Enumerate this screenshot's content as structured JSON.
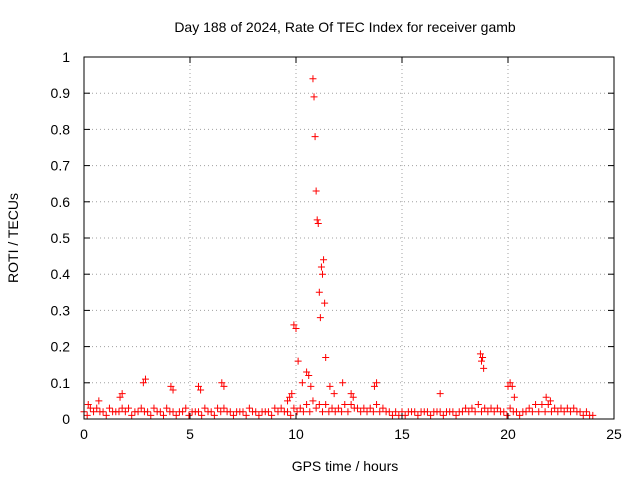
{
  "chart_data": {
    "type": "scatter",
    "title": "Day 188 of 2024, Rate Of TEC Index for receiver gamb",
    "xlabel": "GPS time / hours",
    "ylabel": "ROTI / TECUs",
    "xlim": [
      0,
      25
    ],
    "ylim": [
      0,
      1
    ],
    "x_ticks": [
      "0",
      "5",
      "10",
      "15",
      "20",
      "25"
    ],
    "y_ticks": [
      "0",
      "0.1",
      "0.2",
      "0.3",
      "0.4",
      "0.5",
      "0.6",
      "0.7",
      "0.8",
      "0.9",
      "1"
    ],
    "grid": true,
    "marker": "+",
    "color": "#ff0000",
    "series": [
      {
        "x": [
          0.0,
          0.3,
          0.6,
          0.9,
          1.2,
          1.5,
          1.8,
          2.1,
          2.4,
          2.7,
          3.0,
          3.3,
          3.6,
          3.9,
          4.2,
          4.5,
          4.8,
          5.1,
          5.4,
          5.7,
          6.0,
          6.3,
          6.6,
          6.9,
          7.2,
          7.5,
          7.8,
          8.1,
          8.4,
          8.7,
          9.0,
          9.3,
          9.6,
          9.9,
          10.2,
          10.5,
          10.8,
          11.1,
          11.4,
          11.7,
          12.0,
          12.3,
          12.6,
          12.9,
          13.2,
          13.5,
          13.8,
          14.1,
          14.4,
          14.7,
          15.0,
          15.3,
          15.6,
          15.9,
          16.2,
          16.5,
          16.8,
          17.1,
          17.4,
          17.7,
          18.0,
          18.3,
          18.6,
          18.9,
          19.2,
          19.5,
          19.8,
          20.1,
          20.4,
          20.7,
          21.0,
          21.3,
          21.6,
          21.9,
          22.2,
          22.5,
          22.8,
          23.1,
          23.4,
          23.7,
          24.0,
          0.15,
          0.45,
          0.75,
          1.05,
          1.35,
          1.65,
          1.95,
          2.25,
          2.55,
          2.85,
          3.15,
          3.45,
          3.75,
          4.05,
          4.35,
          4.65,
          4.95,
          5.25,
          5.55,
          5.85,
          6.15,
          6.45,
          6.75,
          7.05,
          7.35,
          7.65,
          7.95,
          8.25,
          8.55,
          8.85,
          9.15,
          9.45,
          9.75,
          10.05,
          10.35,
          10.65,
          10.95,
          11.25,
          11.55,
          11.85,
          12.15,
          12.45,
          12.75,
          13.05,
          13.35,
          13.65,
          13.95,
          14.25,
          14.55,
          14.85,
          15.15,
          15.45,
          15.75,
          16.05,
          16.35,
          16.65,
          16.95,
          17.25,
          17.55,
          17.85,
          18.15,
          18.45,
          18.75,
          19.05,
          19.35,
          19.65,
          19.95,
          20.25,
          20.55,
          20.85,
          21.15,
          21.45,
          21.75,
          22.05,
          22.35,
          22.65,
          22.95,
          23.25,
          23.55,
          23.85,
          0.2,
          0.7,
          1.7,
          1.8,
          2.8,
          2.9,
          4.1,
          4.2,
          5.4,
          5.5,
          6.5,
          6.6,
          9.6,
          9.7,
          9.8,
          9.9,
          10.0,
          10.1,
          10.3,
          10.5,
          10.6,
          10.7,
          10.8,
          10.85,
          10.9,
          10.95,
          11.0,
          11.05,
          11.1,
          11.15,
          11.2,
          11.25,
          11.3,
          11.35,
          11.4,
          11.6,
          11.8,
          12.2,
          12.6,
          12.7,
          13.7,
          13.8,
          16.8,
          18.7,
          18.75,
          18.8,
          18.85,
          20.0,
          20.1,
          20.2,
          20.3,
          21.8,
          22.0
        ],
        "y": [
          0.02,
          0.03,
          0.03,
          0.02,
          0.03,
          0.02,
          0.03,
          0.03,
          0.02,
          0.03,
          0.02,
          0.03,
          0.02,
          0.03,
          0.02,
          0.02,
          0.03,
          0.02,
          0.02,
          0.03,
          0.02,
          0.03,
          0.03,
          0.02,
          0.02,
          0.02,
          0.03,
          0.02,
          0.02,
          0.02,
          0.03,
          0.03,
          0.02,
          0.03,
          0.03,
          0.04,
          0.05,
          0.04,
          0.04,
          0.03,
          0.03,
          0.04,
          0.04,
          0.03,
          0.03,
          0.03,
          0.04,
          0.03,
          0.02,
          0.02,
          0.02,
          0.02,
          0.02,
          0.02,
          0.02,
          0.02,
          0.02,
          0.02,
          0.02,
          0.02,
          0.03,
          0.03,
          0.04,
          0.03,
          0.03,
          0.03,
          0.02,
          0.03,
          0.02,
          0.02,
          0.03,
          0.04,
          0.04,
          0.04,
          0.03,
          0.03,
          0.03,
          0.03,
          0.02,
          0.02,
          0.01,
          0.01,
          0.02,
          0.02,
          0.01,
          0.02,
          0.02,
          0.02,
          0.01,
          0.02,
          0.02,
          0.01,
          0.02,
          0.01,
          0.02,
          0.01,
          0.02,
          0.01,
          0.02,
          0.01,
          0.02,
          0.01,
          0.02,
          0.02,
          0.01,
          0.02,
          0.01,
          0.02,
          0.01,
          0.02,
          0.01,
          0.02,
          0.02,
          0.01,
          0.02,
          0.02,
          0.02,
          0.03,
          0.02,
          0.02,
          0.02,
          0.02,
          0.02,
          0.03,
          0.02,
          0.02,
          0.02,
          0.02,
          0.02,
          0.01,
          0.01,
          0.01,
          0.02,
          0.01,
          0.02,
          0.01,
          0.02,
          0.01,
          0.02,
          0.01,
          0.02,
          0.02,
          0.02,
          0.02,
          0.02,
          0.02,
          0.02,
          0.01,
          0.02,
          0.01,
          0.02,
          0.02,
          0.02,
          0.02,
          0.02,
          0.02,
          0.02,
          0.02,
          0.02,
          0.01,
          0.01,
          0.04,
          0.05,
          0.06,
          0.07,
          0.1,
          0.11,
          0.09,
          0.08,
          0.09,
          0.08,
          0.1,
          0.09,
          0.05,
          0.06,
          0.07,
          0.26,
          0.25,
          0.16,
          0.1,
          0.13,
          0.12,
          0.09,
          0.94,
          0.89,
          0.78,
          0.63,
          0.55,
          0.54,
          0.35,
          0.28,
          0.42,
          0.4,
          0.44,
          0.32,
          0.17,
          0.09,
          0.07,
          0.1,
          0.07,
          0.06,
          0.09,
          0.1,
          0.07,
          0.18,
          0.16,
          0.17,
          0.14,
          0.09,
          0.1,
          0.09,
          0.06,
          0.06,
          0.05
        ]
      }
    ]
  }
}
